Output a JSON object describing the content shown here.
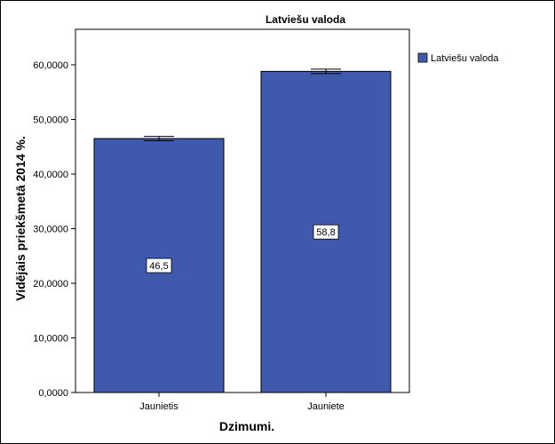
{
  "chart_data": {
    "type": "bar",
    "title": "Latviešu valoda",
    "xlabel": "Dzimumi.",
    "ylabel": "Vidējais priekšmetā 2014 %.",
    "categories": [
      "Jaunietis",
      "Jauniete"
    ],
    "series": [
      {
        "name": "Latviešu valoda",
        "values": [
          46.5,
          58.8
        ],
        "value_labels": [
          "46,5",
          "58,8"
        ],
        "error_low": [
          46.1,
          58.4
        ],
        "error_high": [
          46.9,
          59.2
        ],
        "color": "#3f59ac"
      }
    ],
    "ylim": [
      0,
      65
    ],
    "yticks": [
      0,
      10,
      20,
      30,
      40,
      50,
      60
    ],
    "ytick_labels": [
      "0,0000",
      "10,0000",
      "20,0000",
      "30,0000",
      "40,0000",
      "50,0000",
      "60,0000"
    ],
    "grid": false,
    "legend_position": "right"
  }
}
